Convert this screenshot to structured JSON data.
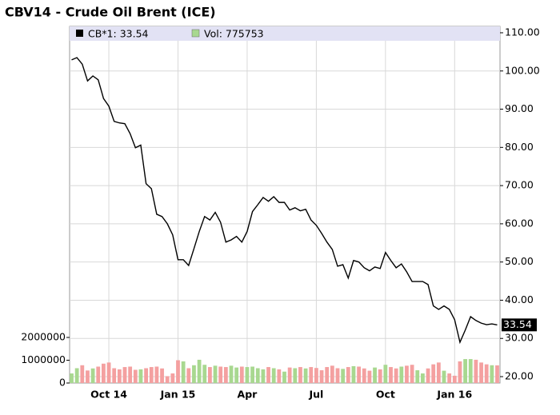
{
  "chart_data": {
    "type": "line",
    "title": "CBV14 - Crude Oil Brent (ICE)",
    "categories": [
      null,
      null,
      null,
      null,
      null,
      null,
      null,
      "Oct 14",
      null,
      null,
      null,
      null,
      null,
      null,
      null,
      null,
      null,
      null,
      null,
      null,
      "Jan 15",
      null,
      null,
      null,
      null,
      null,
      null,
      null,
      null,
      null,
      null,
      null,
      null,
      "Apr",
      null,
      null,
      null,
      null,
      null,
      null,
      null,
      null,
      null,
      null,
      null,
      null,
      "Jul",
      null,
      null,
      null,
      null,
      null,
      null,
      null,
      null,
      null,
      null,
      null,
      null,
      "Oct",
      null,
      null,
      null,
      null,
      null,
      null,
      null,
      null,
      null,
      null,
      null,
      null,
      "Jan 16",
      null,
      null,
      null,
      null,
      null,
      null,
      null,
      null
    ],
    "series": [
      {
        "name": "CB*1: 33.54",
        "color": "#000000",
        "values": [
          102.9,
          103.5,
          101.8,
          97.4,
          98.7,
          97.7,
          92.8,
          90.8,
          86.8,
          86.4,
          86.2,
          83.6,
          79.9,
          80.6,
          70.5,
          69.2,
          62.5,
          61.9,
          60,
          57.1,
          50.6,
          50.6,
          49.1,
          53.5,
          58,
          61.9,
          61,
          63,
          60.4,
          55.2,
          55.8,
          56.7,
          55.2,
          58,
          63.2,
          65,
          66.9,
          65.9,
          67.1,
          65.6,
          65.6,
          63.6,
          64.2,
          63.4,
          63.8,
          61,
          59.6,
          57.5,
          55.2,
          53.3,
          48.9,
          49.3,
          45.8,
          50.4,
          50,
          48.5,
          47.7,
          48.7,
          48.3,
          52.5,
          50.4,
          48.5,
          49.5,
          47.4,
          44.9,
          44.9,
          44.9,
          44.1,
          38.5,
          37.6,
          38.5,
          37.6,
          34.9,
          29,
          32.2,
          35.7,
          34.7,
          34,
          33.6,
          33.8,
          33.54
        ]
      },
      {
        "name": "Vol: 775753",
        "type": "bar",
        "axis": "y2",
        "color": "#a8d890",
        "down_color": "#f4a0a0",
        "values": [
          420000,
          650000,
          780000,
          550000,
          640000,
          720000,
          850000,
          900000,
          650000,
          600000,
          700000,
          720000,
          580000,
          600000,
          650000,
          700000,
          720000,
          640000,
          300000,
          420000,
          1000000,
          950000,
          650000,
          780000,
          1020000,
          800000,
          700000,
          760000,
          720000,
          700000,
          760000,
          680000,
          720000,
          700000,
          720000,
          650000,
          600000,
          700000,
          650000,
          600000,
          500000,
          680000,
          650000,
          700000,
          640000,
          700000,
          660000,
          560000,
          700000,
          760000,
          650000,
          620000,
          700000,
          740000,
          720000,
          640000,
          540000,
          680000,
          600000,
          800000,
          700000,
          640000,
          720000,
          760000,
          800000,
          560000,
          420000,
          640000,
          820000,
          900000,
          540000,
          420000,
          320000,
          950000,
          1050000,
          1050000,
          1020000,
          900000,
          820000,
          780000,
          775753
        ]
      }
    ],
    "last_value": 33.54,
    "ylim": [
      18.33,
      111.67
    ],
    "yticks": [
      {
        "value": 20,
        "label": "20.00"
      },
      {
        "value": 30,
        "label": "30.00"
      },
      {
        "value": 40,
        "label": "40.00"
      },
      {
        "value": 50,
        "label": "50.00"
      },
      {
        "value": 60,
        "label": "60.00"
      },
      {
        "value": 70,
        "label": "70.00"
      },
      {
        "value": 80,
        "label": "80.00"
      },
      {
        "value": 90,
        "label": "90.00"
      },
      {
        "value": 100,
        "label": "100.00"
      },
      {
        "value": 110,
        "label": "110.00"
      }
    ],
    "y2lim": [
      0,
      15650000
    ],
    "y2ticks": [
      0,
      1000000,
      2000000
    ],
    "grid": true
  }
}
